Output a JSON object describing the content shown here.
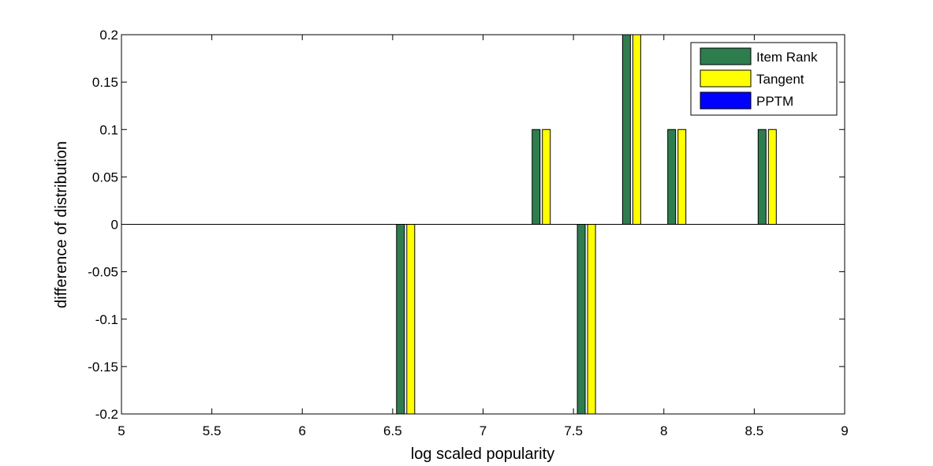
{
  "chart_data": {
    "type": "bar",
    "xlabel": "log scaled popularity",
    "ylabel": "difference of distribution",
    "xlim": [
      5,
      9
    ],
    "ylim": [
      -0.2,
      0.2
    ],
    "xticks": [
      "5",
      "5.5",
      "6",
      "6.5",
      "7",
      "7.5",
      "8",
      "8.5",
      "9"
    ],
    "yticks": [
      "-0.2",
      "-0.15",
      "-0.1",
      "-0.05",
      "0",
      "0.05",
      "0.1",
      "0.15",
      "0.2"
    ],
    "x": [
      6.6,
      7.35,
      7.6,
      7.85,
      8.1,
      8.6
    ],
    "series": [
      {
        "name": "Item Rank",
        "color": "#2e7d4f",
        "values": [
          -0.2,
          0.1,
          -0.2,
          0.2,
          0.1,
          0.1
        ]
      },
      {
        "name": "Tangent",
        "color": "#ffff00",
        "values": [
          -0.2,
          0.1,
          -0.2,
          0.2,
          0.1,
          0.1
        ]
      },
      {
        "name": "PPTM",
        "color": "#0000ff",
        "values": [
          0,
          0,
          0,
          0,
          0,
          0
        ]
      }
    ],
    "legend_position": "top-right",
    "grid": false
  }
}
